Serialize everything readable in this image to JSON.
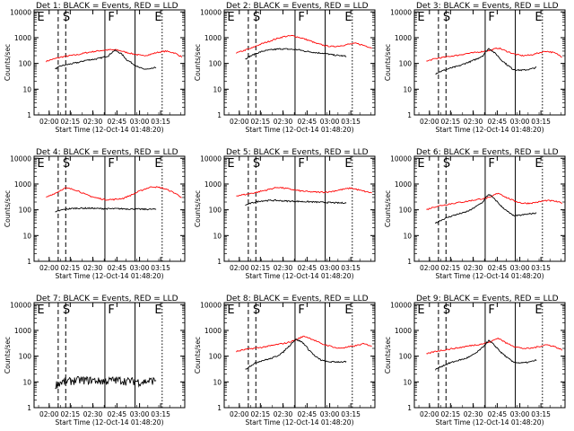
{
  "shared": {
    "ylabel": "Counts/sec",
    "xlabel": "Start Time (12-Oct-14 01:48:20)",
    "xticks": [
      "02:00",
      "02:15",
      "02:30",
      "02:45",
      "03:00",
      "03:15"
    ],
    "yticks": [
      "1",
      "10",
      "100",
      "1000",
      "10000"
    ],
    "markers": [
      "E",
      "S",
      "F",
      "E"
    ],
    "colors": {
      "events": "#000000",
      "lld": "#ff0000"
    }
  },
  "chart_data": [
    {
      "type": "line",
      "title": "Det 1: BLACK = Events, RED = LLD",
      "yscale": "log",
      "ylim": [
        1,
        12000
      ],
      "events_base": [
        60,
        80,
        90,
        100,
        110,
        130,
        140,
        150,
        170,
        200,
        320,
        250,
        140,
        100,
        70,
        60,
        60,
        70
      ],
      "lld_base": [
        120,
        150,
        180,
        200,
        220,
        260,
        290,
        320,
        340,
        330,
        270,
        230,
        200,
        220,
        270,
        300,
        260,
        180
      ]
    },
    {
      "type": "line",
      "title": "Det 2: BLACK = Events, RED = LLD",
      "yscale": "log",
      "ylim": [
        1,
        12000
      ],
      "events_base": [
        150,
        200,
        250,
        300,
        330,
        350,
        370,
        360,
        350,
        340,
        300,
        280,
        260,
        250,
        230,
        210,
        200,
        190
      ],
      "lld_base": [
        250,
        320,
        400,
        550,
        700,
        900,
        1100,
        1200,
        1000,
        800,
        600,
        500,
        450,
        480,
        550,
        600,
        500,
        400
      ]
    },
    {
      "type": "line",
      "title": "Det 3: BLACK = Events, RED = LLD",
      "yscale": "log",
      "ylim": [
        1,
        12000
      ],
      "events_base": [
        40,
        50,
        60,
        70,
        80,
        100,
        120,
        150,
        200,
        380,
        250,
        140,
        90,
        60,
        55,
        55,
        60,
        70
      ],
      "lld_base": [
        120,
        150,
        170,
        190,
        210,
        240,
        260,
        290,
        320,
        400,
        300,
        230,
        200,
        210,
        250,
        300,
        260,
        180
      ]
    },
    {
      "type": "line",
      "title": "Det 4: BLACK = Events, RED = LLD",
      "yscale": "log",
      "ylim": [
        1,
        12000
      ],
      "events_base": [
        80,
        100,
        110,
        115,
        115,
        115,
        112,
        110,
        110,
        110,
        108,
        108,
        105,
        105,
        105
      ],
      "lld_base": [
        300,
        450,
        700,
        600,
        400,
        300,
        250,
        250,
        280,
        400,
        600,
        800,
        700,
        500,
        300
      ]
    },
    {
      "type": "line",
      "title": "Det 5: BLACK = Events, RED = LLD",
      "yscale": "log",
      "ylim": [
        1,
        12000
      ],
      "events_base": [
        150,
        190,
        220,
        230,
        230,
        220,
        215,
        210,
        205,
        200,
        195,
        190,
        185,
        185
      ],
      "lld_base": [
        350,
        400,
        480,
        600,
        750,
        650,
        550,
        500,
        480,
        500,
        600,
        700,
        550,
        450
      ]
    },
    {
      "type": "line",
      "title": "Det 6: BLACK = Events, RED = LLD",
      "yscale": "log",
      "ylim": [
        1,
        12000
      ],
      "events_base": [
        30,
        40,
        50,
        60,
        70,
        80,
        100,
        140,
        200,
        400,
        250,
        140,
        90,
        60,
        60,
        65,
        70,
        75
      ],
      "lld_base": [
        100,
        130,
        150,
        170,
        190,
        210,
        240,
        270,
        300,
        450,
        300,
        220,
        180,
        180,
        200,
        230,
        220,
        180
      ]
    },
    {
      "type": "line",
      "title": "Det 7: BLACK = Events, RED = LLD",
      "yscale": "log",
      "ylim": [
        1,
        12000
      ],
      "events_base": [
        8,
        10,
        11,
        12,
        12,
        12,
        11,
        11,
        12,
        12,
        11,
        11,
        10,
        11,
        12
      ],
      "lld_base": []
    },
    {
      "type": "line",
      "title": "Det 8: BLACK = Events, RED = LLD",
      "yscale": "log",
      "ylim": [
        1,
        12000
      ],
      "events_base": [
        30,
        45,
        60,
        70,
        80,
        100,
        140,
        250,
        450,
        350,
        180,
        100,
        70,
        60,
        60,
        60,
        60
      ],
      "lld_base": [
        150,
        180,
        200,
        220,
        250,
        290,
        330,
        420,
        600,
        450,
        300,
        250,
        200,
        220,
        250,
        300,
        250
      ]
    },
    {
      "type": "line",
      "title": "Det 9: BLACK = Events, RED = LLD",
      "yscale": "log",
      "ylim": [
        1,
        12000
      ],
      "events_base": [
        30,
        40,
        50,
        60,
        70,
        80,
        100,
        140,
        220,
        400,
        250,
        140,
        90,
        60,
        55,
        55,
        60,
        70
      ],
      "lld_base": [
        120,
        150,
        170,
        190,
        210,
        240,
        270,
        300,
        350,
        500,
        320,
        240,
        200,
        200,
        230,
        280,
        240,
        170
      ]
    }
  ]
}
